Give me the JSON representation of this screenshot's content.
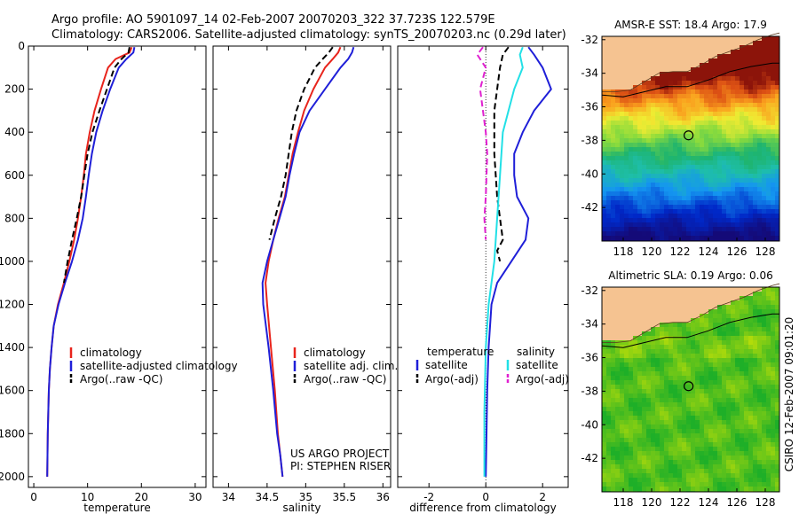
{
  "header": {
    "line1": "Argo profile: AO 5901097_14 02-Feb-2007 20070203_322 37.723S 122.579E",
    "line2": "Climatology: CARS2006. Satellite-adjusted climatology: synTS_20070203.nc (0.29d later)"
  },
  "side_text": "CSIRO 12-Feb-2007 09:01:20",
  "colors": {
    "climatology": "#e8241c",
    "satellite": "#1f1fd8",
    "argo": "#000000",
    "sat_salinity": "#22e0e6",
    "argo_salinity": "#e020d0",
    "land": "#f5c391"
  },
  "chart_data": [
    {
      "type": "line",
      "id": "temperature",
      "xlabel": "temperature",
      "xlim": [
        -1,
        32
      ],
      "ylim": [
        2050,
        0
      ],
      "xticks": [
        0,
        10,
        20,
        30
      ],
      "yticks": [
        0,
        200,
        400,
        600,
        800,
        1000,
        1200,
        1400,
        1600,
        1800,
        2000
      ],
      "legend": [
        "climatology",
        "satellite-adjusted climatology",
        "Argo(..raw -QC)"
      ],
      "series": [
        {
          "name": "climatology",
          "style": "solid",
          "color": "#e8241c",
          "x": [
            18.2,
            17.8,
            15.2,
            13.8,
            12.5,
            11.3,
            10.4,
            9.7,
            9.3,
            8.8,
            8.2,
            7.5,
            6.6,
            5.6,
            4.5,
            3.7,
            3.3,
            3.0,
            2.8,
            2.6,
            2.5
          ],
          "y": [
            5,
            30,
            60,
            100,
            200,
            300,
            400,
            500,
            600,
            700,
            800,
            900,
            1000,
            1100,
            1200,
            1300,
            1400,
            1500,
            1600,
            1800,
            2000
          ]
        },
        {
          "name": "satellite-adjusted climatology",
          "style": "solid",
          "color": "#1f1fd8",
          "x": [
            18.7,
            18.5,
            17.2,
            15.8,
            14.2,
            12.8,
            11.6,
            10.8,
            10.2,
            9.7,
            9.1,
            8.2,
            7.1,
            5.8,
            4.6,
            3.7,
            3.3,
            3.0,
            2.8,
            2.6,
            2.5
          ],
          "y": [
            5,
            30,
            60,
            100,
            200,
            300,
            400,
            500,
            600,
            700,
            800,
            900,
            1000,
            1100,
            1200,
            1300,
            1400,
            1500,
            1600,
            1800,
            2000
          ]
        },
        {
          "name": "Argo(..raw -QC)",
          "style": "dash",
          "color": "#000000",
          "x": [
            17.8,
            17.6,
            16.3,
            15.0,
            13.6,
            12.2,
            10.9,
            10.0,
            9.4,
            8.8,
            8.0,
            7.1,
            6.3,
            5.6
          ],
          "y": [
            5,
            30,
            60,
            100,
            200,
            300,
            400,
            500,
            600,
            700,
            800,
            900,
            1000,
            1100
          ]
        }
      ]
    },
    {
      "type": "line",
      "id": "salinity",
      "xlabel": "salinity",
      "xlim": [
        33.8,
        36.1
      ],
      "ylim": [
        2050,
        0
      ],
      "xticks": [
        34,
        34.5,
        35,
        35.5,
        36
      ],
      "legend": [
        "climatology",
        "satellite adj. clim.",
        "Argo(..raw -QC)"
      ],
      "annotation": [
        "US ARGO PROJECT",
        "PI: STEPHEN RISER"
      ],
      "series": [
        {
          "name": "climatology",
          "style": "solid",
          "color": "#e8241c",
          "x": [
            35.45,
            35.42,
            35.35,
            35.25,
            35.1,
            34.98,
            34.9,
            34.83,
            34.78,
            34.73,
            34.65,
            34.58,
            34.52,
            34.48,
            34.5,
            34.55,
            34.6,
            34.64,
            34.67,
            34.7
          ],
          "y": [
            5,
            30,
            60,
            100,
            200,
            300,
            400,
            500,
            600,
            700,
            800,
            900,
            1000,
            1100,
            1200,
            1400,
            1600,
            1800,
            1900,
            2000
          ]
        },
        {
          "name": "satellite adj. clim.",
          "style": "solid",
          "color": "#1f1fd8",
          "x": [
            35.62,
            35.6,
            35.55,
            35.45,
            35.25,
            35.05,
            34.92,
            34.85,
            34.79,
            34.74,
            34.66,
            34.58,
            34.5,
            34.44,
            34.45,
            34.52,
            34.58,
            34.63,
            34.67,
            34.7
          ],
          "y": [
            5,
            30,
            60,
            100,
            200,
            300,
            400,
            500,
            600,
            700,
            800,
            900,
            1000,
            1100,
            1200,
            1400,
            1600,
            1800,
            1900,
            2000
          ]
        },
        {
          "name": "Argo(..raw -QC)",
          "style": "dash",
          "color": "#000000",
          "x": [
            35.35,
            35.3,
            35.22,
            35.12,
            34.98,
            34.88,
            34.82,
            34.78,
            34.74,
            34.68,
            34.6,
            34.53
          ],
          "y": [
            5,
            30,
            60,
            100,
            200,
            300,
            400,
            500,
            600,
            700,
            800,
            900
          ]
        }
      ]
    },
    {
      "type": "line",
      "id": "difference",
      "xlabel": "difference from climatology",
      "xlim": [
        -3.1,
        2.9
      ],
      "ylim": [
        2050,
        0
      ],
      "xticks": [
        -2,
        0,
        2
      ],
      "legend_titles": [
        "temperature",
        "salinity"
      ],
      "legend": [
        "satellite",
        "Argo(-adj)",
        "satellite",
        "Argo(-adj)"
      ],
      "series": [
        {
          "name": "satellite",
          "quantity": "temperature",
          "style": "solid",
          "color": "#1f1fd8",
          "x": [
            1.5,
            1.7,
            2.0,
            2.3,
            1.7,
            1.3,
            1.0,
            1.0,
            1.1,
            1.5,
            1.4,
            0.9,
            0.4,
            0.2,
            0.1,
            0.05,
            0.0
          ],
          "y": [
            5,
            40,
            100,
            200,
            300,
            400,
            500,
            600,
            700,
            800,
            900,
            1000,
            1100,
            1200,
            1400,
            1600,
            2000
          ]
        },
        {
          "name": "Argo(-adj)",
          "quantity": "temperature",
          "style": "dash",
          "color": "#000000",
          "x": [
            0.8,
            0.6,
            0.5,
            0.4,
            0.3,
            0.3,
            0.4,
            0.5,
            0.6,
            0.4,
            0.5
          ],
          "y": [
            5,
            40,
            100,
            200,
            300,
            500,
            700,
            800,
            900,
            950,
            1000
          ]
        },
        {
          "name": "satellite",
          "quantity": "salinity",
          "style": "solid",
          "color": "#22e0e6",
          "x": [
            1.3,
            1.2,
            1.3,
            1.0,
            0.6,
            0.5,
            0.4,
            0.3,
            0.1,
            0.0,
            -0.05,
            -0.05
          ],
          "y": [
            5,
            40,
            100,
            200,
            400,
            600,
            800,
            1000,
            1200,
            1400,
            1700,
            2000
          ]
        },
        {
          "name": "Argo(-adj)",
          "quantity": "salinity",
          "style": "dash",
          "color": "#e020d0",
          "x": [
            -0.1,
            -0.3,
            0.0,
            -0.2,
            -0.1,
            0.0,
            0.05,
            0.0,
            -0.05,
            0.0
          ],
          "y": [
            5,
            40,
            100,
            200,
            300,
            400,
            500,
            700,
            800,
            900
          ]
        }
      ]
    },
    {
      "type": "heatmap",
      "id": "sst_map",
      "title": "AMSR-E SST: 18.4 Argo: 17.9",
      "xticks": [
        118,
        120,
        122,
        124,
        126,
        128
      ],
      "yticks": [
        -32,
        -34,
        -36,
        -38,
        -40,
        -42
      ],
      "xlim": [
        116.5,
        129
      ],
      "ylim": [
        -44,
        -31.8
      ],
      "marker": {
        "lon": 122.6,
        "lat": -37.7
      },
      "coast": [
        [
          116.5,
          -35.1
        ],
        [
          117.5,
          -35.1
        ],
        [
          118.5,
          -35.0
        ],
        [
          119.5,
          -34.5
        ],
        [
          120.5,
          -34.0
        ],
        [
          121.5,
          -33.9
        ],
        [
          122.5,
          -33.9
        ],
        [
          123.5,
          -33.5
        ],
        [
          124.5,
          -33.0
        ],
        [
          125.5,
          -32.7
        ],
        [
          126.5,
          -32.4
        ],
        [
          127.5,
          -32.0
        ],
        [
          128.5,
          -31.7
        ],
        [
          129,
          -31.6
        ]
      ],
      "shelf": [
        [
          116.5,
          -35.3
        ],
        [
          118.0,
          -35.4
        ],
        [
          119.5,
          -35.1
        ],
        [
          121.0,
          -34.8
        ],
        [
          122.5,
          -34.8
        ],
        [
          124.0,
          -34.4
        ],
        [
          125.5,
          -33.9
        ],
        [
          127.0,
          -33.6
        ],
        [
          128.5,
          -33.4
        ],
        [
          129,
          -33.4
        ]
      ]
    },
    {
      "type": "heatmap",
      "id": "sla_map",
      "title": "Altimetric SLA: 0.19 Argo: 0.06",
      "xticks": [
        118,
        120,
        122,
        124,
        126,
        128
      ],
      "yticks": [
        -32,
        -34,
        -36,
        -38,
        -40,
        -42
      ],
      "xlim": [
        116.5,
        129
      ],
      "ylim": [
        -44,
        -31.8
      ],
      "marker": {
        "lon": 122.6,
        "lat": -37.7
      },
      "coast": [
        [
          116.5,
          -35.1
        ],
        [
          117.5,
          -35.1
        ],
        [
          118.5,
          -35.0
        ],
        [
          119.5,
          -34.5
        ],
        [
          120.5,
          -34.0
        ],
        [
          121.5,
          -33.9
        ],
        [
          122.5,
          -33.9
        ],
        [
          123.5,
          -33.5
        ],
        [
          124.5,
          -33.0
        ],
        [
          125.5,
          -32.7
        ],
        [
          126.5,
          -32.4
        ],
        [
          127.5,
          -32.0
        ],
        [
          128.5,
          -31.7
        ],
        [
          129,
          -31.6
        ]
      ],
      "shelf": [
        [
          116.5,
          -35.3
        ],
        [
          118.0,
          -35.4
        ],
        [
          119.5,
          -35.1
        ],
        [
          121.0,
          -34.8
        ],
        [
          122.5,
          -34.8
        ],
        [
          124.0,
          -34.4
        ],
        [
          125.5,
          -33.9
        ],
        [
          127.0,
          -33.6
        ],
        [
          128.5,
          -33.4
        ],
        [
          129,
          -33.4
        ]
      ]
    }
  ]
}
